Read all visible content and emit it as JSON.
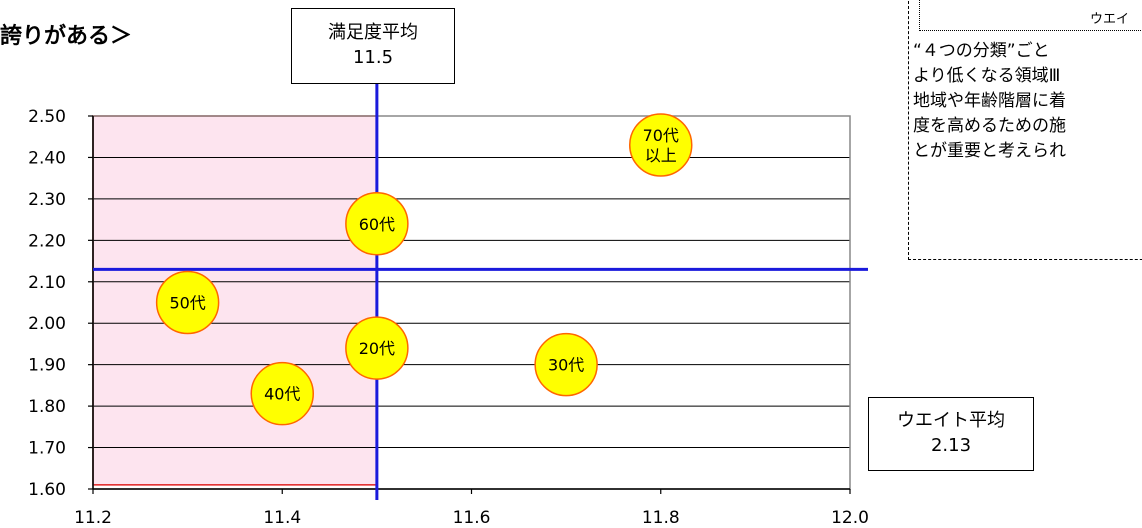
{
  "page_title": "誇りがある＞",
  "satisfaction_avg": {
    "label": "満足度平均",
    "value": "11.5"
  },
  "weight_avg": {
    "label": "ウエイト平均",
    "value": "2.13"
  },
  "note": {
    "header": "ウエイ",
    "lines": [
      "“４つの分類”ごと",
      "より低くなる領域Ⅲ",
      "地域や年齢階層に着",
      "度を高めるための施",
      "とが重要と考えられ"
    ]
  },
  "colors": {
    "highlight_fill": "#fde4ef",
    "highlight_border": "#e02020",
    "reference_line": "#1a1adc",
    "bubble_fill": "#ffff00",
    "bubble_border": "#ff6600"
  },
  "chart_data": {
    "type": "scatter",
    "xlim": [
      11.2,
      12.0
    ],
    "ylim": [
      1.6,
      2.5
    ],
    "x_ticks": [
      "11.2",
      "11.4",
      "11.6",
      "11.8",
      "12.0"
    ],
    "y_ticks": [
      "2.50",
      "2.40",
      "2.30",
      "2.20",
      "2.10",
      "2.00",
      "1.90",
      "1.80",
      "1.70",
      "1.60"
    ],
    "grid": true,
    "reference_lines": {
      "x": 11.5,
      "y": 2.13
    },
    "highlight_region": {
      "x": [
        11.2,
        11.5
      ],
      "y": [
        1.61,
        2.5
      ]
    },
    "points": [
      {
        "label": [
          "70代",
          "以上"
        ],
        "x": 11.8,
        "y": 2.43
      },
      {
        "label": [
          "60代"
        ],
        "x": 11.5,
        "y": 2.24
      },
      {
        "label": [
          "50代"
        ],
        "x": 11.3,
        "y": 2.05
      },
      {
        "label": [
          "20代"
        ],
        "x": 11.5,
        "y": 1.94
      },
      {
        "label": [
          "30代"
        ],
        "x": 11.7,
        "y": 1.9
      },
      {
        "label": [
          "40代"
        ],
        "x": 11.4,
        "y": 1.83
      }
    ]
  }
}
